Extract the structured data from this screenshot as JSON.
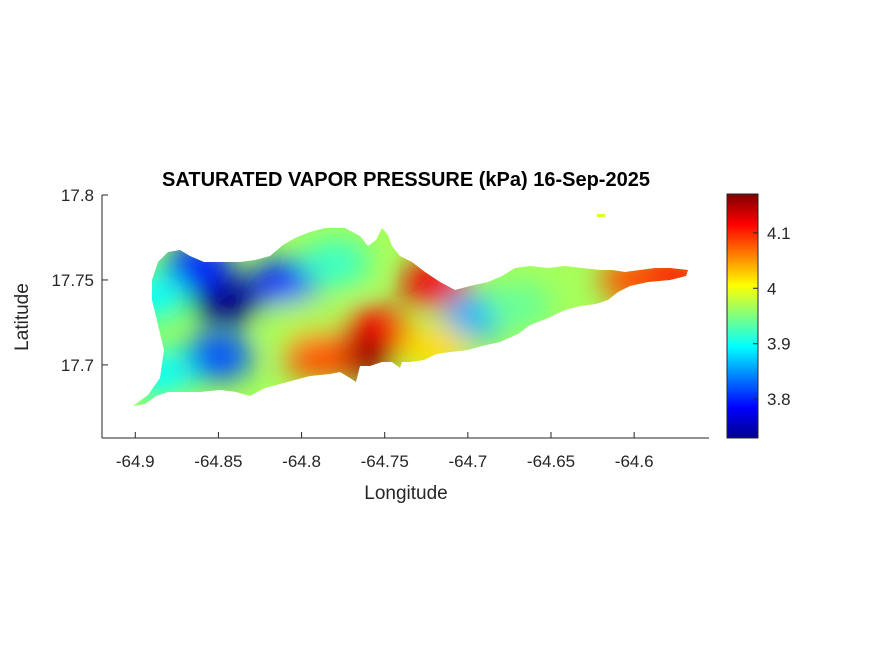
{
  "chart_data": {
    "type": "heatmap",
    "title": "SATURATED VAPOR PRESSURE (kPa) 16-Sep-2025",
    "xlabel": "Longitude",
    "ylabel": "Latitude",
    "xlim": [
      -64.92,
      -64.555
    ],
    "ylim": [
      17.657,
      17.8
    ],
    "x_ticks": [
      -64.9,
      -64.85,
      -64.8,
      -64.75,
      -64.7,
      -64.65,
      -64.6
    ],
    "x_tick_labels": [
      "-64.9",
      "-64.85",
      "-64.8",
      "-64.75",
      "-64.7",
      "-64.65",
      "-64.6"
    ],
    "y_ticks": [
      17.7,
      17.75,
      17.8
    ],
    "y_tick_labels": [
      "17.7",
      "17.75",
      "17.8"
    ],
    "colorbar": {
      "colormap": "jet",
      "clim": [
        3.73,
        4.17
      ],
      "ticks": [
        3.8,
        3.9,
        4.0,
        4.1
      ],
      "tick_labels": [
        "3.8",
        "3.9",
        "4",
        "4.1"
      ]
    },
    "grid": false,
    "features": [
      {
        "lon": -64.845,
        "lat": 17.738,
        "value": 3.73
      },
      {
        "lon": -64.862,
        "lat": 17.758,
        "value": 3.8
      },
      {
        "lon": -64.81,
        "lat": 17.748,
        "value": 3.8
      },
      {
        "lon": -64.85,
        "lat": 17.705,
        "value": 3.82
      },
      {
        "lon": -64.89,
        "lat": 17.74,
        "value": 3.9
      },
      {
        "lon": -64.885,
        "lat": 17.695,
        "value": 3.9
      },
      {
        "lon": -64.8,
        "lat": 17.725,
        "value": 3.97
      },
      {
        "lon": -64.78,
        "lat": 17.76,
        "value": 3.92
      },
      {
        "lon": -64.755,
        "lat": 17.72,
        "value": 4.11
      },
      {
        "lon": -64.765,
        "lat": 17.705,
        "value": 4.16
      },
      {
        "lon": -64.79,
        "lat": 17.705,
        "value": 4.08
      },
      {
        "lon": -64.72,
        "lat": 17.748,
        "value": 4.12
      },
      {
        "lon": -64.695,
        "lat": 17.729,
        "value": 3.86
      },
      {
        "lon": -64.67,
        "lat": 17.735,
        "value": 3.94
      },
      {
        "lon": -64.6,
        "lat": 17.75,
        "value": 4.08
      },
      {
        "lon": -64.575,
        "lat": 17.753,
        "value": 4.1
      },
      {
        "lon": -64.72,
        "lat": 17.71,
        "value": 4.02
      }
    ]
  }
}
